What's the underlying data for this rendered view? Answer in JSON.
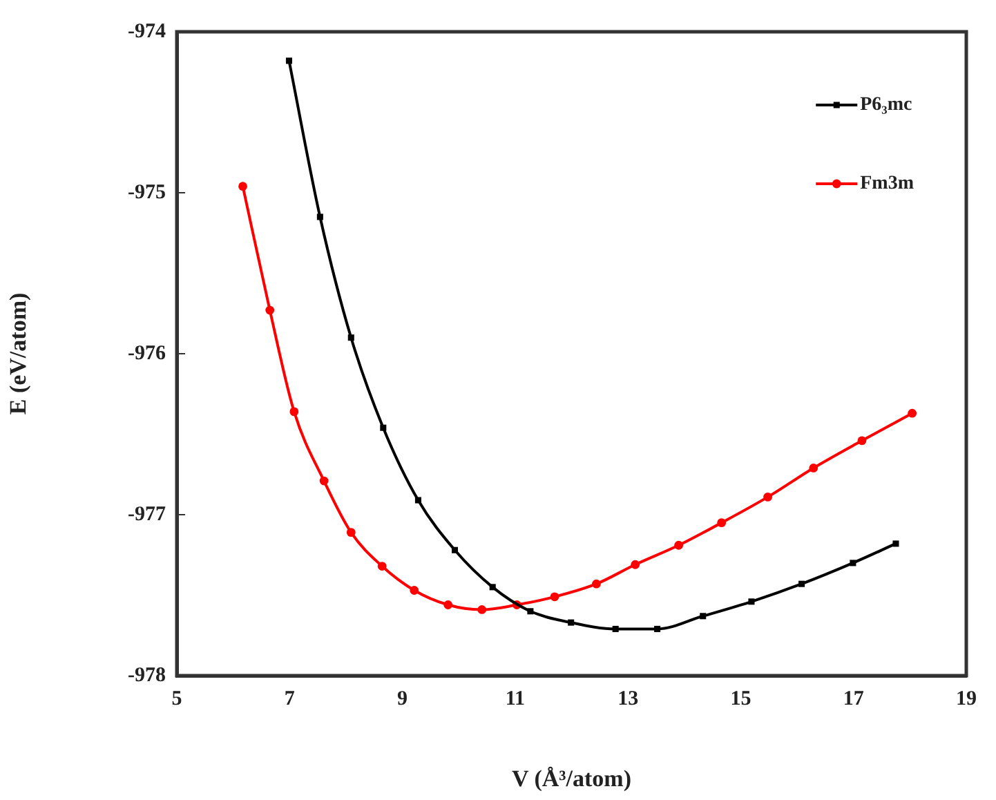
{
  "chart_data": {
    "type": "line",
    "xlabel": "V (Å³/atom)",
    "ylabel": "E (eV/atom)",
    "xlim": [
      5,
      19
    ],
    "xticks": [
      5,
      7,
      9,
      11,
      13,
      15,
      17,
      19
    ],
    "ylim": [
      -978,
      -974
    ],
    "yticks": [
      -978,
      -977,
      -976,
      -975,
      -974
    ],
    "grid": false,
    "legend": "top right",
    "line_style": "solid",
    "series": [
      {
        "name": "P6₃mc",
        "color": "#000000",
        "marker": "square",
        "x": [
          6.99,
          7.54,
          8.09,
          8.66,
          9.28,
          9.93,
          10.6,
          11.27,
          11.99,
          12.78,
          13.52,
          14.33,
          15.19,
          16.08,
          16.99,
          17.75
        ],
        "values": [
          -974.18,
          -975.15,
          -975.9,
          -976.46,
          -976.91,
          -977.22,
          -977.45,
          -977.6,
          -977.67,
          -977.71,
          -977.71,
          -977.63,
          -977.54,
          -977.43,
          -977.3,
          -977.18
        ]
      },
      {
        "name": "Fm3m",
        "color": "#ff0000",
        "marker": "circle",
        "x": [
          6.17,
          6.65,
          7.08,
          7.61,
          8.09,
          8.64,
          9.21,
          9.81,
          10.41,
          11.03,
          11.7,
          12.44,
          13.13,
          13.9,
          14.66,
          15.48,
          16.29,
          17.15,
          18.04
        ],
        "values": [
          -974.96,
          -975.73,
          -976.36,
          -976.79,
          -977.11,
          -977.32,
          -977.47,
          -977.56,
          -977.59,
          -977.56,
          -977.51,
          -977.43,
          -977.31,
          -977.19,
          -977.05,
          -976.89,
          -976.71,
          -976.54,
          -976.37
        ]
      }
    ]
  }
}
